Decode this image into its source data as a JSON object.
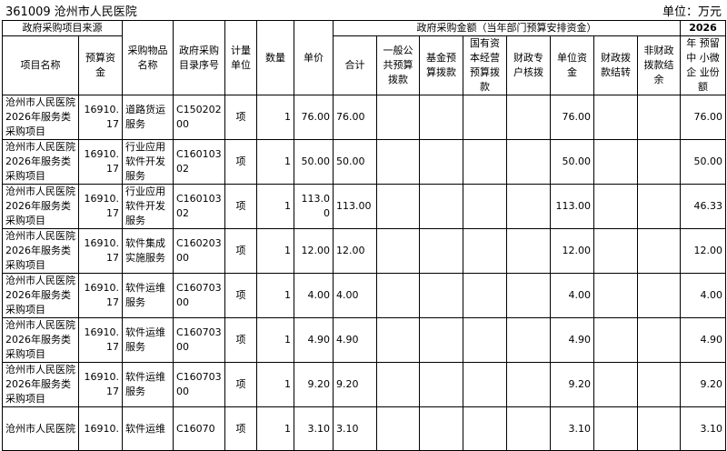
{
  "header": {
    "title": "361009 沧州市人民医院",
    "unit": "单位：万元"
  },
  "table": {
    "group_source": "政府采购项目来源",
    "group_amount": "政府采购金额（当年部门预算安排资金）",
    "col_reserve_year": "2026",
    "columns": [
      "项目名称",
      "预算资金",
      "采购物品名称",
      "政府采购目录序号",
      "计量单位",
      "数量",
      "单价",
      "合计",
      "一般公共预算拨款",
      "基金预算拨款",
      "国有资本经营预算拨款",
      "财政专户核拨",
      "单位资金",
      "财政拨款结转",
      "非财政拨款结余",
      "年 预留 中 小微 企 业份 额"
    ],
    "rows": [
      [
        "沧州市人民医院2026年服务类采购项目",
        "16910.17",
        "道路货运服务",
        "C15020200",
        "项",
        "1",
        "76.00",
        "76.00",
        "",
        "",
        "",
        "",
        "76.00",
        "",
        "",
        "76.00"
      ],
      [
        "沧州市人民医院2026年服务类采购项目",
        "16910.17",
        "行业应用软件开发服务",
        "C16010302",
        "项",
        "1",
        "50.00",
        "50.00",
        "",
        "",
        "",
        "",
        "50.00",
        "",
        "",
        "50.00"
      ],
      [
        "沧州市人民医院2026年服务类采购项目",
        "16910.17",
        "行业应用软件开发服务",
        "C16010302",
        "项",
        "1",
        "113.00",
        "113.00",
        "",
        "",
        "",
        "",
        "113.00",
        "",
        "",
        "46.33"
      ],
      [
        "沧州市人民医院2026年服务类采购项目",
        "16910.17",
        "软件集成实施服务",
        "C16020300",
        "项",
        "1",
        "12.00",
        "12.00",
        "",
        "",
        "",
        "",
        "12.00",
        "",
        "",
        "12.00"
      ],
      [
        "沧州市人民医院2026年服务类采购项目",
        "16910.17",
        "软件运维服务",
        "C16070300",
        "项",
        "1",
        "4.00",
        "4.00",
        "",
        "",
        "",
        "",
        "4.00",
        "",
        "",
        "4.00"
      ],
      [
        "沧州市人民医院2026年服务类采购项目",
        "16910.17",
        "软件运维服务",
        "C16070300",
        "项",
        "1",
        "4.90",
        "4.90",
        "",
        "",
        "",
        "",
        "4.90",
        "",
        "",
        "4.90"
      ],
      [
        "沧州市人民医院2026年服务类采购项目",
        "16910.17",
        "软件运维服务",
        "C16070300",
        "项",
        "1",
        "9.20",
        "9.20",
        "",
        "",
        "",
        "",
        "9.20",
        "",
        "",
        "9.20"
      ],
      [
        "沧州市人民医院",
        "16910.",
        "软件运维",
        "C16070",
        "项",
        "1",
        "3.10",
        "3.10",
        "",
        "",
        "",
        "",
        "3.10",
        "",
        "",
        "3.10"
      ]
    ]
  }
}
